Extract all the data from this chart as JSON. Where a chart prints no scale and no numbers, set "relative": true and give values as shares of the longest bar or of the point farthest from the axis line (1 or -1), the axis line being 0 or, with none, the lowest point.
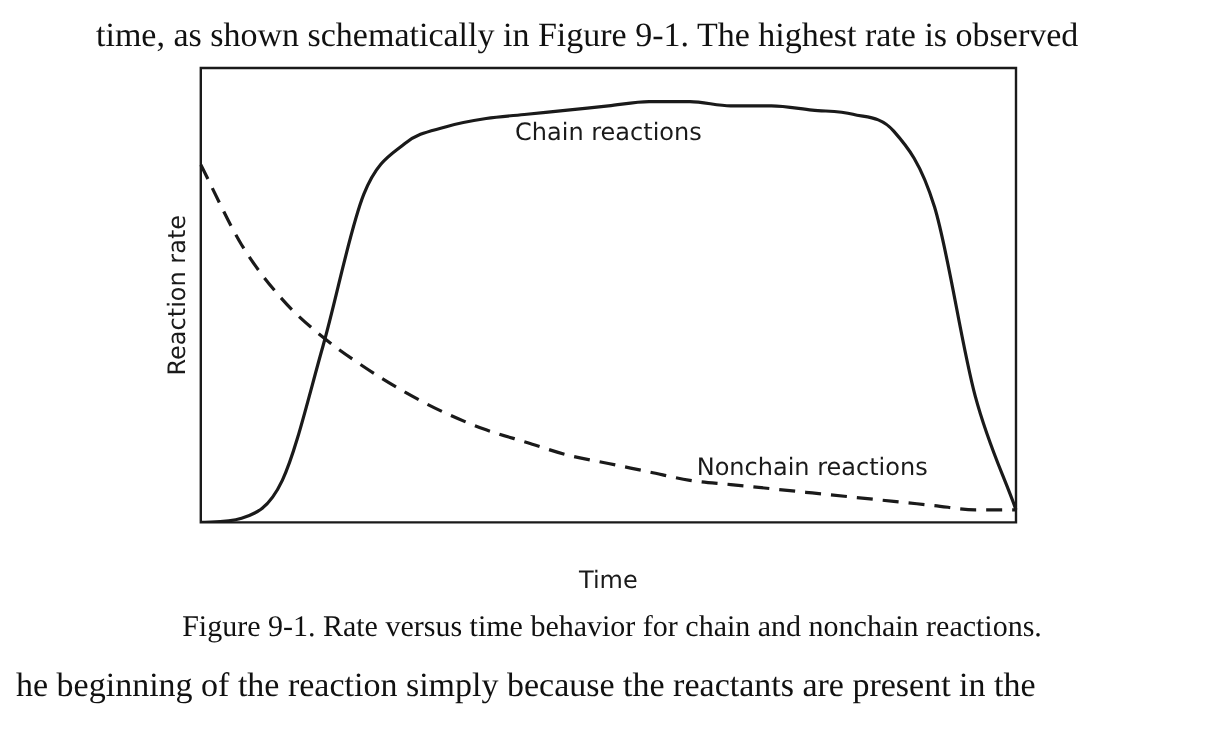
{
  "chart_data": {
    "type": "line",
    "relative": true,
    "xlabel": "Time",
    "ylabel": "Reaction rate",
    "categories": [
      null,
      null,
      null,
      null,
      null,
      null,
      null,
      null,
      null,
      null,
      null,
      null,
      null,
      null,
      null,
      null,
      null,
      null,
      null,
      null,
      null
    ],
    "series": [
      {
        "name": "Chain reactions",
        "color": "#1a1a1a",
        "line_style": "solid",
        "values": [
          0,
          0.01,
          0.1,
          0.42,
          0.78,
          0.9,
          0.94,
          0.96,
          0.97,
          0.98,
          0.99,
          1,
          1,
          0.99,
          0.99,
          0.98,
          0.97,
          0.93,
          0.75,
          0.3,
          0.03
        ]
      },
      {
        "name": "Nonchain reactions",
        "color": "#1a1a1a",
        "line_style": "dashed",
        "values": [
          0.85,
          0.66,
          0.53,
          0.44,
          0.37,
          0.31,
          0.26,
          0.22,
          0.19,
          0.16,
          0.14,
          0.12,
          0.1,
          0.09,
          0.08,
          0.07,
          0.06,
          0.05,
          0.04,
          0.03,
          0.03
        ]
      }
    ],
    "grid": false,
    "legend": false,
    "marker": "none",
    "annotations": [
      "time, as shown schematically in Figure 9-1. The highest rate is observed",
      "Figure 9-1. Rate versus time behavior for chain and nonchain reactions.",
      "he beginning of the reaction simply because the reactants are present in the"
    ]
  }
}
